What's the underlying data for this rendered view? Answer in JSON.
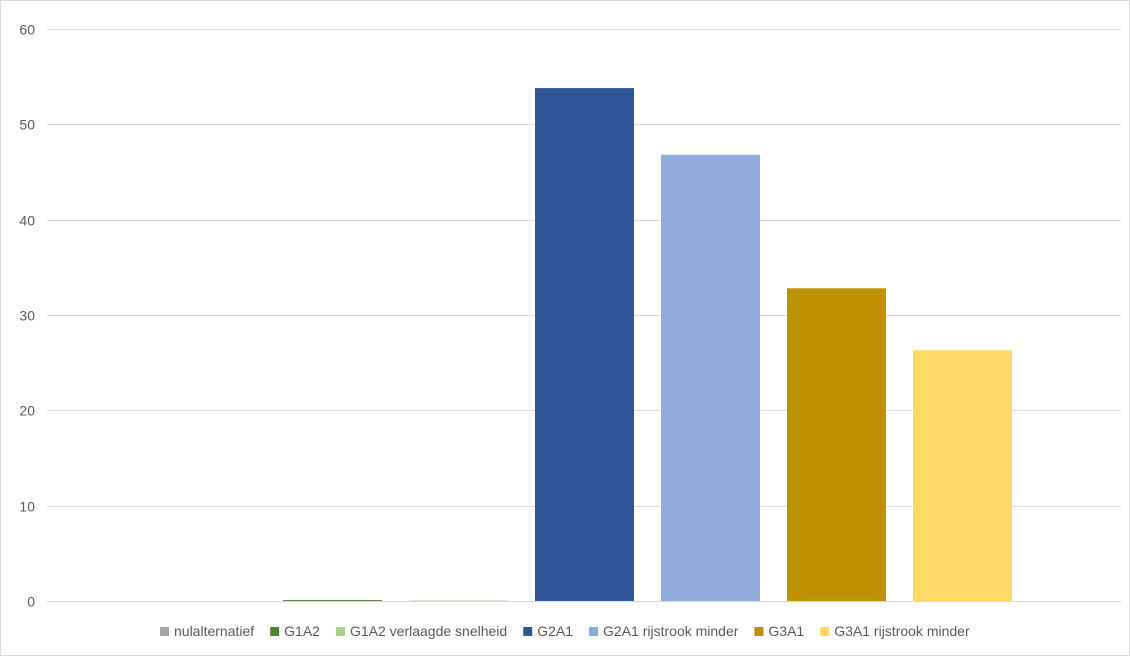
{
  "chart_data": {
    "type": "bar",
    "title": "",
    "xlabel": "",
    "ylabel": "",
    "ylim": [
      0,
      60
    ],
    "yticks": [
      0,
      10,
      20,
      30,
      40,
      50,
      60
    ],
    "grid": true,
    "legend_position": "bottom",
    "series": [
      {
        "name": "nulalternatief",
        "value": 0,
        "color": "#a5a5a5"
      },
      {
        "name": "G1A2",
        "value": 0.1,
        "color": "#548235"
      },
      {
        "name": "G1A2 verlaagde snelheid",
        "value": 0.05,
        "color": "#a9d18e"
      },
      {
        "name": "G2A1",
        "value": 53.8,
        "color": "#2f5597"
      },
      {
        "name": "G2A1 rijstrook minder",
        "value": 46.8,
        "color": "#8faadc"
      },
      {
        "name": "G3A1",
        "value": 32.8,
        "color": "#bf9000"
      },
      {
        "name": "G3A1 rijstrook minder",
        "value": 26.3,
        "color": "#ffd966"
      }
    ]
  }
}
